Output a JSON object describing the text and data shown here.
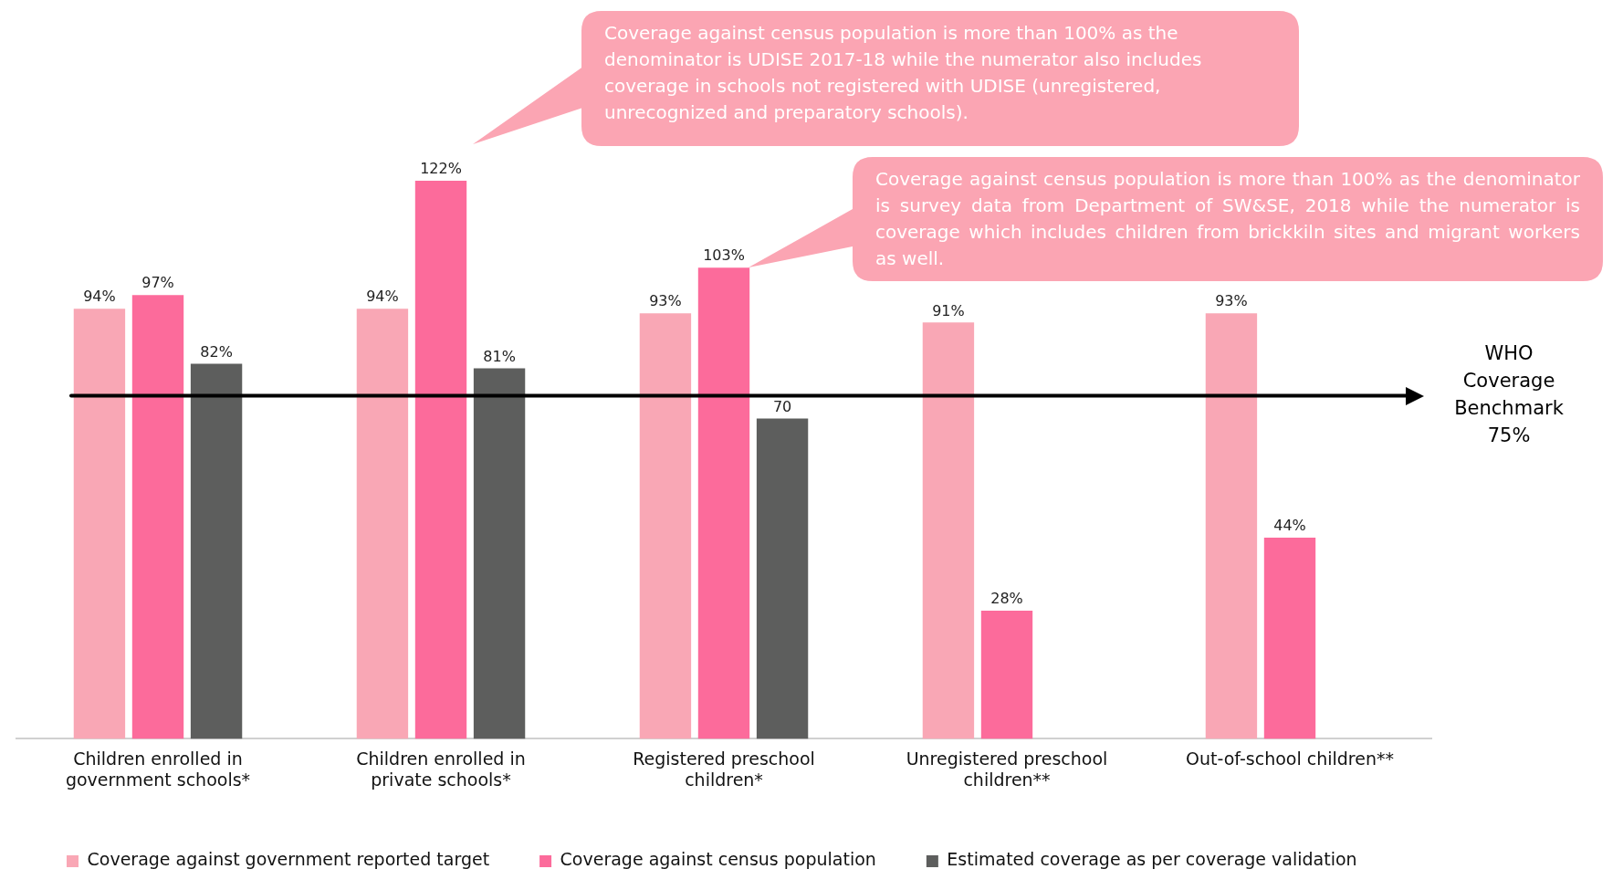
{
  "chart_data": {
    "type": "bar",
    "categories": [
      "Children enrolled in government schools*",
      "Children enrolled in private schools*",
      "Registered preschool children*",
      "Unregistered preschool children**",
      "Out-of-school children**"
    ],
    "series": [
      {
        "name": "Coverage against government reported target",
        "color": "#f9a7b5",
        "values": [
          94,
          94,
          93,
          91,
          93
        ],
        "value_labels": [
          "94%",
          "94%",
          "93%",
          "91%",
          "93%"
        ]
      },
      {
        "name": "Coverage against census population",
        "color": "#fc6b9b",
        "values": [
          97,
          122,
          103,
          28,
          44
        ],
        "value_labels": [
          "97%",
          "122%",
          "103%",
          "28%",
          "44%"
        ]
      },
      {
        "name": "Estimated coverage as per coverage validation",
        "color": "#5d5e5d",
        "values": [
          82,
          81,
          70,
          null,
          null
        ],
        "value_labels": [
          "82%",
          "81%",
          "70",
          null,
          null
        ]
      }
    ],
    "ref_lines": [
      {
        "axis": "y",
        "value": 75,
        "label": "WHO Coverage Benchmark 75%",
        "color": "#000000"
      }
    ],
    "annotations": [
      "Coverage against census population is more than 100% as the denominator is UDISE 2017-18 while the numerator also includes coverage in  schools not registered with UDISE (unregistered, unrecognized and preparatory schools).",
      "Coverage against census population is more than 100% as the denominator is survey data from Department of SW&SE, 2018 while the numerator is coverage which includes children from brickkiln sites and migrant workers as well."
    ],
    "tick_labels": "x",
    "grid": false,
    "legend": "bottom"
  }
}
